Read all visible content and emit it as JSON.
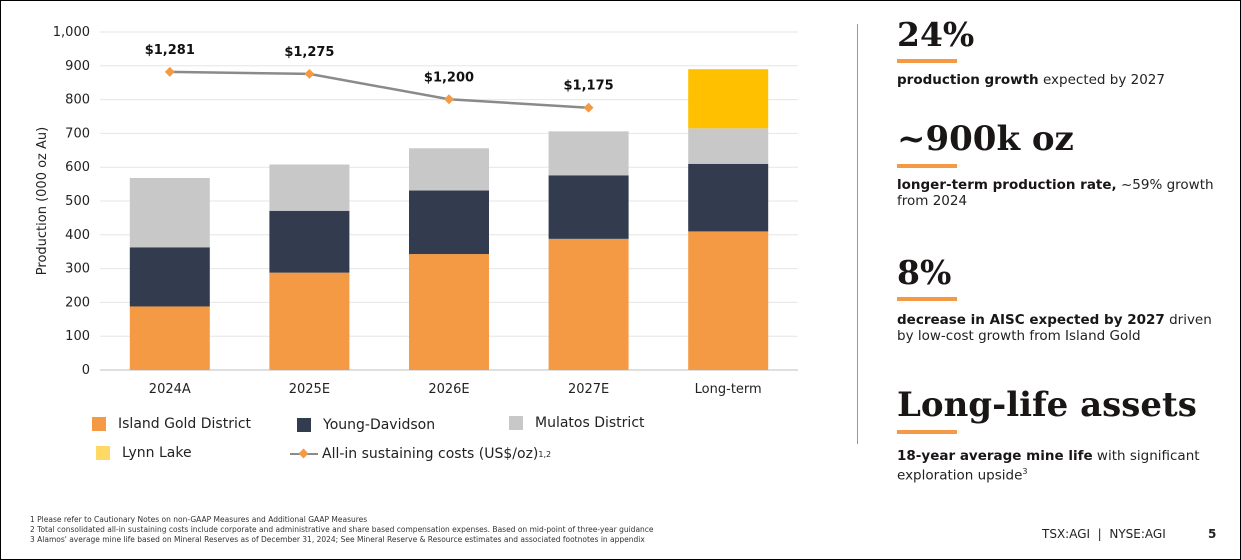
{
  "chart_data": {
    "type": "bar",
    "stacked": true,
    "categories": [
      "2024A",
      "2025E",
      "2026E",
      "2027E",
      "Long-term"
    ],
    "ylabel": "Production (000 oz Au)",
    "ylim": [
      0,
      1000
    ],
    "yticks": [
      "0",
      "100",
      "200",
      "300",
      "400",
      "500",
      "600",
      "700",
      "800",
      "900",
      "1,000"
    ],
    "series": [
      {
        "name": "Island Gold District",
        "color": "#f59a44",
        "values": [
          188,
          288,
          343,
          388,
          410
        ]
      },
      {
        "name": "Young-Davidson",
        "color": "#323c4e",
        "values": [
          175,
          183,
          188,
          188,
          200
        ]
      },
      {
        "name": "Mulatos District",
        "color": "#c8c8c8",
        "values": [
          205,
          137,
          125,
          130,
          105
        ]
      },
      {
        "name": "Lynn Lake",
        "color": "#ffc000",
        "values": [
          0,
          0,
          0,
          0,
          175
        ]
      }
    ],
    "line": {
      "name": "All-in sustaining costs (US$/oz)",
      "superscript": "1,2",
      "values": [
        1281,
        1275,
        1200,
        1175
      ],
      "plot_values": [
        882,
        876,
        801,
        776
      ],
      "labels": [
        "$1,281",
        "$1,275",
        "$1,200",
        "$1,175"
      ],
      "color": "#8a8a8a",
      "marker_color": "#f59a44"
    }
  },
  "stats": [
    {
      "big": "24%",
      "bold": "production growth",
      "rest": " expected by 2027"
    },
    {
      "big": "~900k oz",
      "bold": "longer-term production rate,",
      "rest": " ~59% growth from 2024"
    },
    {
      "big": "8%",
      "bold": "decrease in AISC expected by 2027",
      "rest": " driven by low-cost growth from Island Gold"
    },
    {
      "big": "Long-life assets",
      "bold": "18-year average mine life",
      "rest": " with significant exploration upside",
      "sup": "3"
    }
  ],
  "footnotes": [
    "1  Please refer to Cautionary Notes on non-GAAP Measures and Additional GAAP Measures",
    "2  Total consolidated all-in sustaining costs include corporate and administrative and share based compensation expenses. Based on mid-point of three-year guidance",
    "3  Alamos' average mine life based on Mineral Reserves as of December 31, 2024; See Mineral Reserve & Resource estimates and associated footnotes in appendix"
  ],
  "ticker": "TSX:AGI  |  NYSE:AGI",
  "page_number": "5"
}
